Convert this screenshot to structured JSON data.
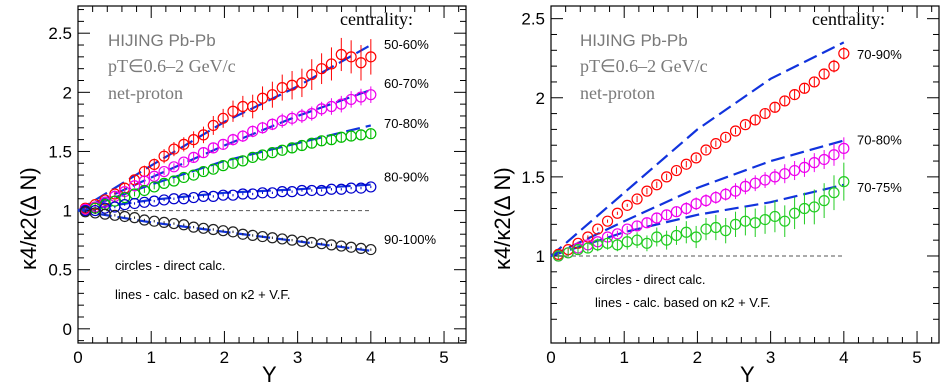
{
  "chart_data": [
    {
      "type": "scatter",
      "xlabel": "Y",
      "ylabel": "κ4/κ2(Δ N)",
      "xlim": [
        0,
        5.3
      ],
      "ylim": [
        -0.12,
        2.73
      ],
      "xticks": [
        0,
        1,
        2,
        3,
        4,
        5
      ],
      "yticks": [
        0,
        0.5,
        1,
        1.5,
        2,
        2.5
      ],
      "reference_line": 1,
      "annotations": {
        "model": "HIJING Pb-Pb",
        "pt_range": "pT∈0.6–2 GeV/c",
        "particle": "net-proton",
        "centrality_header": "centrality:",
        "legend_circles": "circles - direct calc.",
        "legend_lines": "lines - calc. based on κ2 + V.F."
      },
      "series": [
        {
          "name": "50-60%",
          "color": "#ff0000",
          "label_y": 2.4,
          "points": {
            "x_start": 0.1,
            "x_end": 4.0,
            "count": 30,
            "y": [
              1.02,
              1.05,
              1.09,
              1.14,
              1.19,
              1.26,
              1.33,
              1.39,
              1.46,
              1.52,
              1.56,
              1.6,
              1.64,
              1.72,
              1.78,
              1.84,
              1.88,
              1.88,
              1.95,
              1.98,
              2.04,
              2.06,
              2.08,
              2.15,
              2.2,
              2.24,
              2.32,
              2.3,
              2.25,
              2.3
            ],
            "err": [
              0.02,
              0.02,
              0.03,
              0.03,
              0.04,
              0.04,
              0.05,
              0.05,
              0.06,
              0.06,
              0.06,
              0.07,
              0.07,
              0.08,
              0.08,
              0.09,
              0.09,
              0.1,
              0.1,
              0.11,
              0.11,
              0.12,
              0.12,
              0.13,
              0.13,
              0.14,
              0.14,
              0.14,
              0.15,
              0.15
            ]
          },
          "line": [
            [
              0.0,
              1.0
            ],
            [
              1.0,
              1.38
            ],
            [
              2.0,
              1.75
            ],
            [
              3.0,
              2.05
            ],
            [
              4.0,
              2.4
            ]
          ]
        },
        {
          "name": "60-70%",
          "color": "#ee00ee",
          "label_y": 2.07,
          "points": {
            "x_start": 0.1,
            "x_end": 4.0,
            "count": 30,
            "y": [
              1.01,
              1.03,
              1.07,
              1.12,
              1.16,
              1.21,
              1.25,
              1.29,
              1.33,
              1.37,
              1.41,
              1.45,
              1.49,
              1.53,
              1.56,
              1.6,
              1.63,
              1.67,
              1.7,
              1.73,
              1.76,
              1.78,
              1.8,
              1.82,
              1.86,
              1.88,
              1.9,
              1.94,
              1.96,
              1.98
            ],
            "err": [
              0.01,
              0.01,
              0.02,
              0.02,
              0.02,
              0.02,
              0.03,
              0.03,
              0.03,
              0.03,
              0.03,
              0.04,
              0.04,
              0.04,
              0.04,
              0.05,
              0.05,
              0.05,
              0.05,
              0.05,
              0.06,
              0.06,
              0.06,
              0.06,
              0.06,
              0.07,
              0.07,
              0.07,
              0.07,
              0.07
            ]
          },
          "line": [
            [
              0.0,
              1.0
            ],
            [
              1.0,
              1.28
            ],
            [
              2.0,
              1.55
            ],
            [
              3.0,
              1.8
            ],
            [
              4.0,
              2.02
            ]
          ]
        },
        {
          "name": "70-80%",
          "color": "#00bb00",
          "label_y": 1.73,
          "points": {
            "x_start": 0.1,
            "x_end": 4.0,
            "count": 30,
            "y": [
              1.0,
              1.02,
              1.05,
              1.08,
              1.11,
              1.14,
              1.17,
              1.2,
              1.23,
              1.25,
              1.28,
              1.3,
              1.33,
              1.35,
              1.38,
              1.4,
              1.42,
              1.45,
              1.47,
              1.49,
              1.51,
              1.53,
              1.55,
              1.57,
              1.59,
              1.6,
              1.62,
              1.63,
              1.64,
              1.65
            ],
            "err": [
              0.01,
              0.01,
              0.01,
              0.01,
              0.02,
              0.02,
              0.02,
              0.02,
              0.02,
              0.02,
              0.02,
              0.02,
              0.03,
              0.03,
              0.03,
              0.03,
              0.03,
              0.03,
              0.03,
              0.03,
              0.03,
              0.04,
              0.04,
              0.04,
              0.04,
              0.04,
              0.04,
              0.04,
              0.04,
              0.04
            ]
          },
          "line": [
            [
              0.0,
              1.0
            ],
            [
              1.0,
              1.22
            ],
            [
              2.0,
              1.42
            ],
            [
              3.0,
              1.57
            ],
            [
              4.0,
              1.72
            ]
          ]
        },
        {
          "name": "80-90%",
          "color": "#0000cc",
          "label_y": 1.28,
          "points": {
            "x_start": 0.1,
            "x_end": 4.0,
            "count": 30,
            "y": [
              1.0,
              1.0,
              1.02,
              1.03,
              1.05,
              1.06,
              1.07,
              1.08,
              1.09,
              1.1,
              1.1,
              1.11,
              1.12,
              1.12,
              1.13,
              1.13,
              1.14,
              1.14,
              1.15,
              1.15,
              1.16,
              1.16,
              1.17,
              1.17,
              1.17,
              1.18,
              1.18,
              1.19,
              1.19,
              1.2
            ],
            "err": [
              0.01,
              0.01,
              0.01,
              0.01,
              0.01,
              0.01,
              0.01,
              0.01,
              0.01,
              0.01,
              0.01,
              0.01,
              0.01,
              0.01,
              0.01,
              0.01,
              0.01,
              0.01,
              0.01,
              0.01,
              0.01,
              0.01,
              0.01,
              0.01,
              0.01,
              0.01,
              0.01,
              0.01,
              0.01,
              0.01
            ]
          },
          "line": [
            [
              0.0,
              1.0
            ],
            [
              1.0,
              1.09
            ],
            [
              2.0,
              1.15
            ],
            [
              3.0,
              1.18
            ],
            [
              4.0,
              1.22
            ]
          ]
        },
        {
          "name": "90-100%",
          "color": "#222222",
          "label_y": 0.75,
          "points": {
            "x_start": 0.1,
            "x_end": 4.0,
            "count": 30,
            "y": [
              0.99,
              0.98,
              0.97,
              0.96,
              0.95,
              0.94,
              0.92,
              0.91,
              0.9,
              0.89,
              0.88,
              0.86,
              0.85,
              0.84,
              0.83,
              0.82,
              0.8,
              0.79,
              0.78,
              0.77,
              0.76,
              0.75,
              0.74,
              0.73,
              0.72,
              0.71,
              0.7,
              0.69,
              0.68,
              0.67
            ],
            "err": [
              0.01,
              0.01,
              0.01,
              0.01,
              0.01,
              0.01,
              0.01,
              0.01,
              0.01,
              0.01,
              0.01,
              0.01,
              0.01,
              0.01,
              0.01,
              0.01,
              0.01,
              0.01,
              0.01,
              0.01,
              0.01,
              0.01,
              0.01,
              0.01,
              0.01,
              0.01,
              0.01,
              0.01,
              0.01,
              0.01
            ]
          },
          "line": [
            [
              0.0,
              1.0
            ],
            [
              1.0,
              0.9
            ],
            [
              2.0,
              0.82
            ],
            [
              3.0,
              0.74
            ],
            [
              4.0,
              0.66
            ]
          ]
        }
      ]
    },
    {
      "type": "scatter",
      "xlabel": "Y",
      "ylabel": "κ4/κ2(Δ N)",
      "xlim": [
        0,
        5.3
      ],
      "ylim": [
        0.45,
        2.58
      ],
      "xticks": [
        0,
        1,
        2,
        3,
        4,
        5
      ],
      "yticks": [
        1,
        1.5,
        2,
        2.5
      ],
      "reference_line": 1,
      "annotations": {
        "model": "HIJING Pb-Pb",
        "pt_range": "pT∈0.6–2 GeV/c",
        "particle": "net-proton",
        "centrality_header": "centrality:",
        "legend_circles": "circles - direct calc.",
        "legend_lines": "lines - calc. based on κ2 + V.F."
      },
      "series": [
        {
          "name": "70-90%",
          "color": "#ff0000",
          "label_y": 2.27,
          "points": {
            "x_start": 0.1,
            "x_end": 4.0,
            "count": 30,
            "y": [
              1.01,
              1.04,
              1.08,
              1.12,
              1.17,
              1.22,
              1.27,
              1.32,
              1.36,
              1.41,
              1.45,
              1.5,
              1.54,
              1.58,
              1.62,
              1.67,
              1.71,
              1.75,
              1.79,
              1.83,
              1.86,
              1.9,
              1.94,
              1.98,
              2.02,
              2.06,
              2.1,
              2.15,
              2.2,
              2.28
            ],
            "err": [
              0.01,
              0.01,
              0.01,
              0.01,
              0.01,
              0.01,
              0.01,
              0.01,
              0.02,
              0.02,
              0.02,
              0.02,
              0.02,
              0.02,
              0.02,
              0.02,
              0.02,
              0.02,
              0.02,
              0.02,
              0.03,
              0.03,
              0.03,
              0.03,
              0.03,
              0.03,
              0.03,
              0.03,
              0.04,
              0.04
            ]
          },
          "line": [
            [
              0.0,
              1.0
            ],
            [
              1.0,
              1.4
            ],
            [
              2.0,
              1.8
            ],
            [
              3.0,
              2.12
            ],
            [
              4.0,
              2.35
            ]
          ]
        },
        {
          "name": "70-80%",
          "color": "#ee00ee",
          "label_y": 1.73,
          "points": {
            "x_start": 0.1,
            "x_end": 4.0,
            "count": 30,
            "y": [
              1.0,
              1.02,
              1.05,
              1.07,
              1.09,
              1.12,
              1.14,
              1.17,
              1.19,
              1.21,
              1.24,
              1.26,
              1.28,
              1.3,
              1.33,
              1.35,
              1.37,
              1.39,
              1.41,
              1.44,
              1.46,
              1.48,
              1.5,
              1.52,
              1.54,
              1.56,
              1.59,
              1.61,
              1.64,
              1.68
            ],
            "err": [
              0.01,
              0.01,
              0.01,
              0.02,
              0.02,
              0.02,
              0.02,
              0.02,
              0.03,
              0.03,
              0.03,
              0.03,
              0.03,
              0.04,
              0.04,
              0.04,
              0.04,
              0.04,
              0.05,
              0.05,
              0.05,
              0.05,
              0.05,
              0.06,
              0.06,
              0.06,
              0.06,
              0.06,
              0.07,
              0.07
            ]
          },
          "line": [
            [
              0.0,
              1.0
            ],
            [
              1.0,
              1.22
            ],
            [
              2.0,
              1.43
            ],
            [
              3.0,
              1.6
            ],
            [
              4.0,
              1.73
            ]
          ]
        },
        {
          "name": "70-75%",
          "color": "#22cc22",
          "label_y": 1.43,
          "points": {
            "x_start": 0.1,
            "x_end": 4.0,
            "count": 30,
            "y": [
              1.0,
              1.02,
              1.04,
              1.05,
              1.07,
              1.08,
              1.07,
              1.09,
              1.1,
              1.08,
              1.12,
              1.1,
              1.13,
              1.15,
              1.12,
              1.17,
              1.18,
              1.16,
              1.2,
              1.22,
              1.21,
              1.23,
              1.25,
              1.22,
              1.27,
              1.3,
              1.31,
              1.35,
              1.4,
              1.47
            ],
            "err": [
              0.02,
              0.02,
              0.03,
              0.03,
              0.04,
              0.04,
              0.04,
              0.05,
              0.05,
              0.05,
              0.06,
              0.06,
              0.06,
              0.07,
              0.07,
              0.07,
              0.08,
              0.08,
              0.08,
              0.09,
              0.09,
              0.09,
              0.1,
              0.1,
              0.1,
              0.1,
              0.11,
              0.11,
              0.11,
              0.12
            ]
          },
          "line": [
            [
              0.0,
              1.0
            ],
            [
              1.0,
              1.15
            ],
            [
              2.0,
              1.26
            ],
            [
              3.0,
              1.34
            ],
            [
              4.0,
              1.45
            ]
          ]
        }
      ]
    }
  ]
}
